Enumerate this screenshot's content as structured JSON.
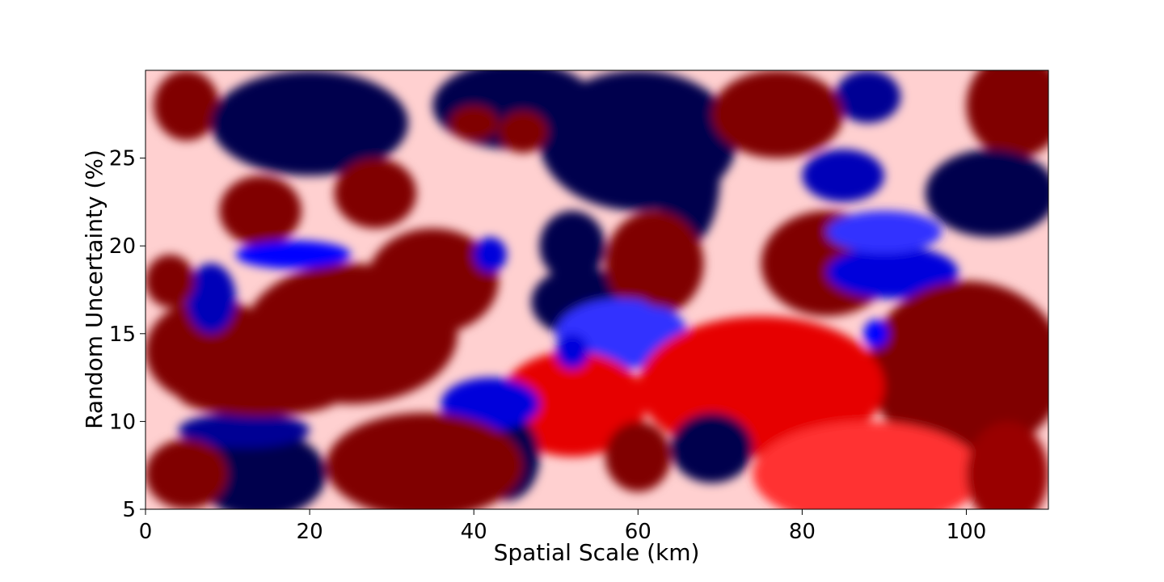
{
  "chart_data": {
    "type": "heatmap",
    "title": "",
    "xlabel": "Spatial Scale (km)",
    "ylabel": "Random Uncertainty (%)",
    "xlim": [
      0,
      110
    ],
    "ylim": [
      5,
      30
    ],
    "x_ticks": [
      "0",
      "20",
      "40",
      "60",
      "80",
      "100"
    ],
    "y_ticks": [
      "5",
      "10",
      "15",
      "20",
      "25"
    ],
    "colormap": "seismic (blue–white–red)",
    "colorbar": false,
    "regions": [
      {
        "x": 5,
        "y": 28,
        "rx": 4,
        "ry": 2,
        "v": 1
      },
      {
        "x": 20,
        "y": 27,
        "rx": 12,
        "ry": 3,
        "v": -1
      },
      {
        "x": 45,
        "y": 28,
        "rx": 10,
        "ry": 2.5,
        "v": -1
      },
      {
        "x": 60,
        "y": 26,
        "rx": 12,
        "ry": 4,
        "v": -1
      },
      {
        "x": 66,
        "y": 24,
        "rx": 4,
        "ry": 4,
        "v": -1
      },
      {
        "x": 88,
        "y": 28.5,
        "rx": 4,
        "ry": 1.5,
        "v": -0.8
      },
      {
        "x": 77,
        "y": 27.5,
        "rx": 8,
        "ry": 2.5,
        "v": 1
      },
      {
        "x": 106,
        "y": 28,
        "rx": 6,
        "ry": 3,
        "v": 1
      },
      {
        "x": 103,
        "y": 23,
        "rx": 8,
        "ry": 2.5,
        "v": -1
      },
      {
        "x": 85,
        "y": 24,
        "rx": 5,
        "ry": 1.5,
        "v": -0.7
      },
      {
        "x": 40,
        "y": 27,
        "rx": 3,
        "ry": 1,
        "v": 1
      },
      {
        "x": 46,
        "y": 26.5,
        "rx": 3,
        "ry": 1.2,
        "v": 1
      },
      {
        "x": 28,
        "y": 23,
        "rx": 5,
        "ry": 2,
        "v": 1
      },
      {
        "x": 14,
        "y": 22,
        "rx": 5,
        "ry": 2,
        "v": 1
      },
      {
        "x": 25,
        "y": 15,
        "rx": 13,
        "ry": 4,
        "v": 1
      },
      {
        "x": 8,
        "y": 14,
        "rx": 8,
        "ry": 3,
        "v": 1
      },
      {
        "x": 35,
        "y": 18,
        "rx": 8,
        "ry": 3,
        "v": 1
      },
      {
        "x": 42,
        "y": 19.5,
        "rx": 2,
        "ry": 1,
        "v": -0.6
      },
      {
        "x": 52,
        "y": 20,
        "rx": 4,
        "ry": 2,
        "v": -1
      },
      {
        "x": 53,
        "y": 16.8,
        "rx": 6,
        "ry": 2,
        "v": -1
      },
      {
        "x": 62,
        "y": 19,
        "rx": 6,
        "ry": 3,
        "v": 1
      },
      {
        "x": 58,
        "y": 15,
        "rx": 8,
        "ry": 2,
        "v": -0.4
      },
      {
        "x": 83,
        "y": 19,
        "rx": 8,
        "ry": 3,
        "v": 1
      },
      {
        "x": 91,
        "y": 18.5,
        "rx": 8,
        "ry": 1.5,
        "v": -0.6
      },
      {
        "x": 90,
        "y": 20.8,
        "rx": 7,
        "ry": 1.2,
        "v": -0.4
      },
      {
        "x": 100,
        "y": 13,
        "rx": 12,
        "ry": 5,
        "v": 1
      },
      {
        "x": 75,
        "y": 12,
        "rx": 15,
        "ry": 4,
        "v": 0.6
      },
      {
        "x": 52,
        "y": 11,
        "rx": 9,
        "ry": 3,
        "v": 0.6
      },
      {
        "x": 44,
        "y": 8,
        "rx": 4,
        "ry": 2.5,
        "v": -1
      },
      {
        "x": 42,
        "y": 11,
        "rx": 6,
        "ry": 1.5,
        "v": -0.6
      },
      {
        "x": 52,
        "y": 14,
        "rx": 2,
        "ry": 1,
        "v": -0.6
      },
      {
        "x": 69,
        "y": 8.5,
        "rx": 5,
        "ry": 2,
        "v": -1
      },
      {
        "x": 60,
        "y": 8,
        "rx": 4,
        "ry": 2,
        "v": 1
      },
      {
        "x": 34,
        "y": 7.5,
        "rx": 12,
        "ry": 3,
        "v": 1
      },
      {
        "x": 14,
        "y": 7,
        "rx": 8,
        "ry": 2.5,
        "v": -1
      },
      {
        "x": 12,
        "y": 9.5,
        "rx": 8,
        "ry": 1,
        "v": -0.8
      },
      {
        "x": 5,
        "y": 7,
        "rx": 5,
        "ry": 2,
        "v": 1
      },
      {
        "x": 14,
        "y": 11.5,
        "rx": 10,
        "ry": 1.2,
        "v": 1
      },
      {
        "x": 88,
        "y": 7,
        "rx": 14,
        "ry": 3,
        "v": 0.4
      },
      {
        "x": 105,
        "y": 7,
        "rx": 5,
        "ry": 3,
        "v": 0.9
      },
      {
        "x": 89,
        "y": 15,
        "rx": 1.5,
        "ry": 0.8,
        "v": -0.5
      },
      {
        "x": 8,
        "y": 17,
        "rx": 3,
        "ry": 2,
        "v": -0.7
      },
      {
        "x": 3,
        "y": 18,
        "rx": 3,
        "ry": 1.5,
        "v": 1
      },
      {
        "x": 18,
        "y": 19.5,
        "rx": 7,
        "ry": 0.8,
        "v": -0.5
      },
      {
        "x": 63,
        "y": 17.5,
        "rx": 3,
        "ry": 1,
        "v": 1
      }
    ]
  }
}
